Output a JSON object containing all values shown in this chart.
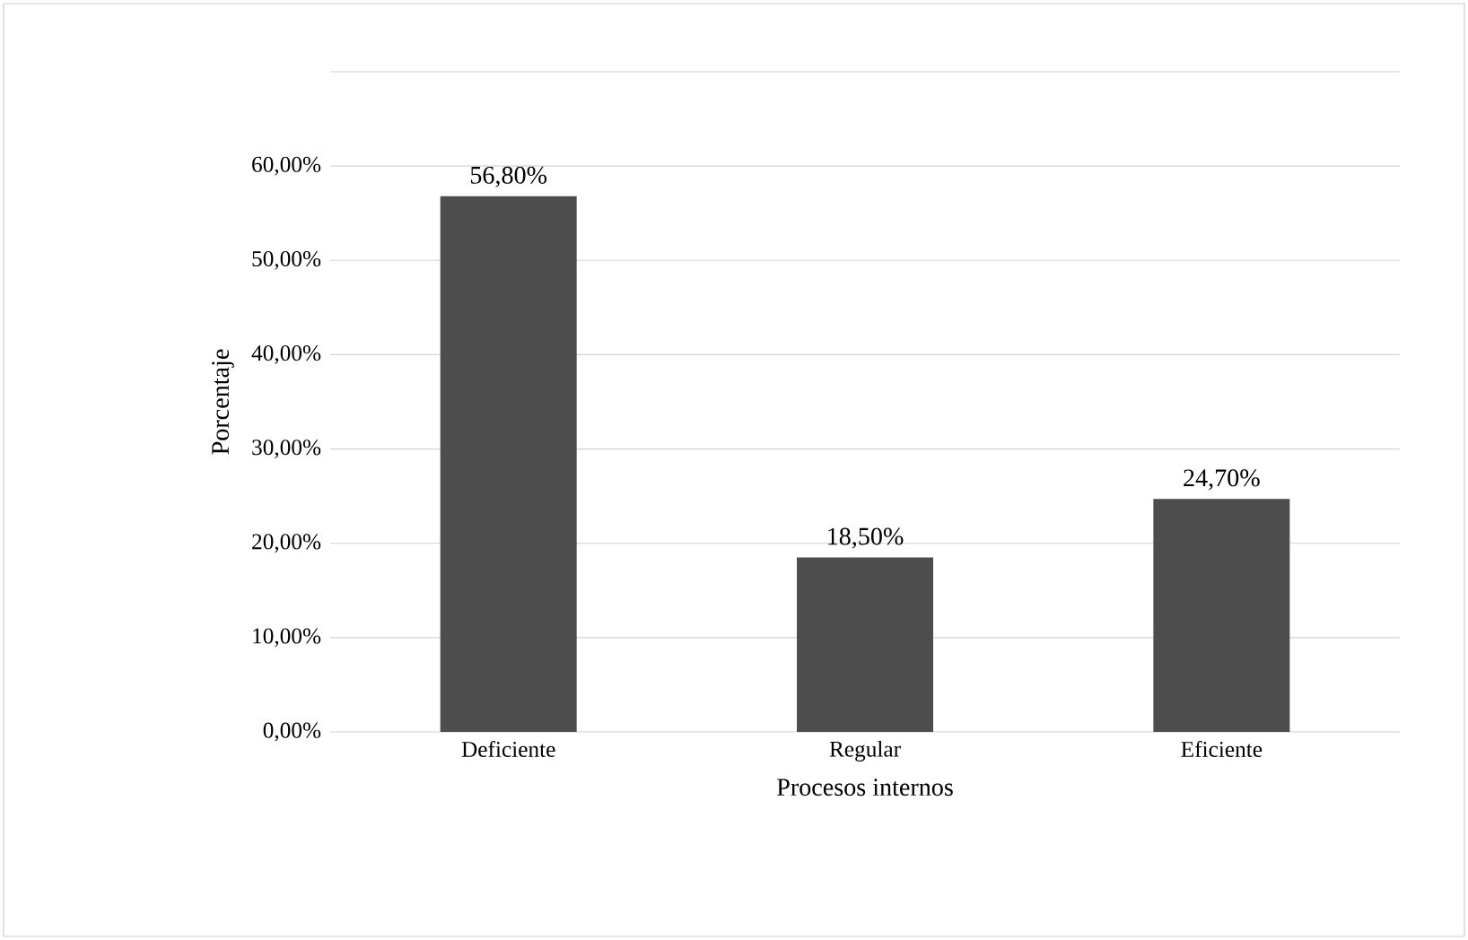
{
  "chart_data": {
    "type": "bar",
    "xlabel": "Procesos internos",
    "ylabel": "Porcentaje",
    "categories": [
      "Deficiente",
      "Regular",
      "Eficiente"
    ],
    "values": [
      56.8,
      18.5,
      24.7
    ],
    "color": "#4d4d4d",
    "value_labels": [
      "56,80%",
      "18,50%",
      "24,70%"
    ],
    "ylim": [
      0,
      70
    ],
    "yticks": [
      {
        "value": 0,
        "label": "0,00%"
      },
      {
        "value": 10,
        "label": "10,00%"
      },
      {
        "value": 20,
        "label": "20,00%"
      },
      {
        "value": 30,
        "label": "30,00%"
      },
      {
        "value": 40,
        "label": "40,00%"
      },
      {
        "value": 50,
        "label": "50,00%"
      },
      {
        "value": 60,
        "label": "60,00%"
      },
      {
        "value": 70,
        "label": null
      }
    ],
    "grid": "y"
  }
}
